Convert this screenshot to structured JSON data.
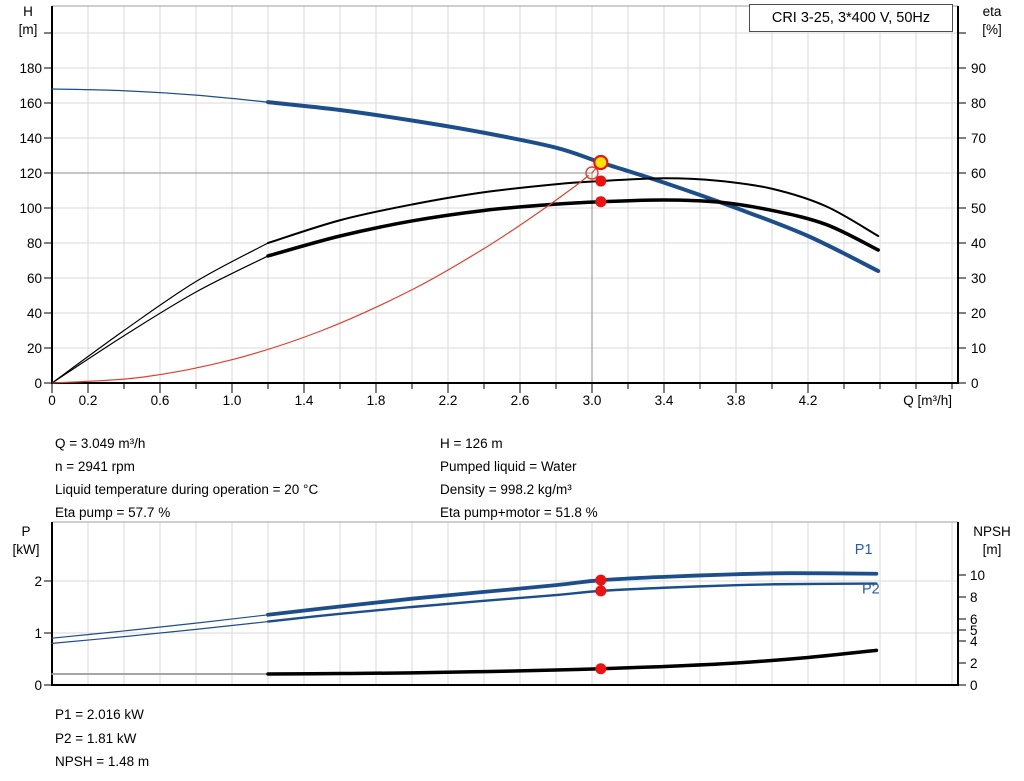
{
  "title_box": "CRI 3-25, 3*400 V, 50Hz",
  "axis_labels": {
    "top_left": [
      "H",
      "[m]"
    ],
    "top_right": [
      "eta",
      "[%]"
    ],
    "x": "Q [m³/h]",
    "bottom_left": [
      "P",
      "[kW]"
    ],
    "bottom_right": [
      "NPSH",
      "[m]"
    ]
  },
  "info": {
    "left": [
      "Q = 3.049 m³/h",
      "n = 2941 rpm",
      "Liquid temperature during operation = 20 °C",
      "Eta pump = 57.7 %"
    ],
    "right": [
      "H = 126 m",
      "Pumped liquid = Water",
      "Density = 998.2 kg/m³",
      "Eta pump+motor = 51.8 %"
    ],
    "bottom": [
      "P1 = 2.016 kW",
      "P2 = 1.81 kW",
      "NPSH = 1.48 m"
    ]
  },
  "colors": {
    "curve_blue": "#1d4e8c",
    "curve_black": "#000000",
    "curve_red": "#e0402f",
    "curve_gray": "#9a9a9a",
    "marker_red": "#ee1111",
    "duty_yellow": "#ffe400",
    "grid": "#d9d9d9",
    "crosshair": "#8c8c8c",
    "frame": "#000000",
    "label_blue": "#2a5c9e"
  },
  "chart_data": [
    {
      "type": "line",
      "id": "head-efficiency-chart",
      "title": "CRI 3-25, 3*400 V, 50Hz",
      "x_axis": {
        "label": "Q [m³/h]",
        "min": 0,
        "max": 5.03,
        "grid_step": 0.2,
        "tick_step": 0.2,
        "labeled_ticks": [
          0,
          0.2,
          0.6,
          1.0,
          1.4,
          1.8,
          2.2,
          2.6,
          3.0,
          3.4,
          3.8,
          4.2
        ],
        "tick_label_strings": [
          "0",
          "0.2",
          "0.6",
          "1.0",
          "1.4",
          "1.8",
          "2.2",
          "2.6",
          "3.0",
          "3.4",
          "3.8",
          "4.2"
        ]
      },
      "y_left": {
        "label": "H [m]",
        "min": 0,
        "grid_step": 20,
        "grid_max": 200,
        "labeled_ticks": [
          0,
          20,
          40,
          60,
          80,
          100,
          120,
          140,
          160,
          180
        ]
      },
      "y_right": {
        "label": "eta [%]",
        "min": 0,
        "tick_step": 10,
        "tick_max": 100,
        "labeled_ticks": [
          0,
          10,
          20,
          30,
          40,
          50,
          60,
          70,
          80,
          90
        ]
      },
      "crosshair": {
        "q": 3.0,
        "axis": "H",
        "value": 120
      },
      "series": [
        {
          "name": "head-curve-thin",
          "axis": "H",
          "color": "blue",
          "w": 1.3,
          "points": [
            [
              0,
              168
            ],
            [
              0.4,
              167
            ],
            [
              0.8,
              164.5
            ],
            [
              1.2,
              160.5
            ]
          ]
        },
        {
          "name": "head-curve",
          "axis": "H",
          "color": "blue",
          "w": 4,
          "points": [
            [
              1.2,
              160.5
            ],
            [
              1.6,
              156
            ],
            [
              2.0,
              150
            ],
            [
              2.4,
              143
            ],
            [
              2.8,
              134.5
            ],
            [
              3.049,
              126
            ],
            [
              3.4,
              114.5
            ],
            [
              3.8,
              100
            ],
            [
              4.2,
              84
            ],
            [
              4.59,
              64
            ]
          ]
        },
        {
          "name": "eta-pump-curve-thin",
          "axis": "eta",
          "color": "black",
          "w": 1.2,
          "points": [
            [
              0,
              0
            ],
            [
              0.4,
              15
            ],
            [
              0.8,
              29
            ],
            [
              1.2,
              40
            ]
          ]
        },
        {
          "name": "eta-pump-curve",
          "axis": "eta",
          "color": "black",
          "w": 2,
          "points": [
            [
              1.2,
              40
            ],
            [
              1.6,
              46.5
            ],
            [
              2.0,
              51
            ],
            [
              2.4,
              54.5
            ],
            [
              2.8,
              56.8
            ],
            [
              3.049,
              57.7
            ],
            [
              3.4,
              58.5
            ],
            [
              3.7,
              57.8
            ],
            [
              4.0,
              55.5
            ],
            [
              4.3,
              50.5
            ],
            [
              4.59,
              42
            ]
          ]
        },
        {
          "name": "eta-pump-motor-curve-thin",
          "axis": "eta",
          "color": "black",
          "w": 1.2,
          "points": [
            [
              0,
              0
            ],
            [
              0.4,
              13.5
            ],
            [
              0.8,
              26
            ],
            [
              1.2,
              36.3
            ]
          ]
        },
        {
          "name": "eta-pump-motor-curve",
          "axis": "eta",
          "color": "black",
          "w": 3.5,
          "points": [
            [
              1.2,
              36.3
            ],
            [
              1.6,
              42
            ],
            [
              2.0,
              46.3
            ],
            [
              2.4,
              49.3
            ],
            [
              2.8,
              51.1
            ],
            [
              3.049,
              51.8
            ],
            [
              3.4,
              52.3
            ],
            [
              3.7,
              51.7
            ],
            [
              4.0,
              49.3
            ],
            [
              4.3,
              45.3
            ],
            [
              4.59,
              38
            ]
          ]
        },
        {
          "name": "system-curve",
          "axis": "H",
          "color": "red",
          "w": 1.2,
          "points": [
            [
              0,
              0
            ],
            [
              0.5,
              3.3
            ],
            [
              1.0,
              13.3
            ],
            [
              1.5,
              30
            ],
            [
              2.0,
              53.3
            ],
            [
              2.4,
              76.8
            ],
            [
              2.7,
              97.2
            ],
            [
              2.9,
              112
            ],
            [
              2.98,
              118.5
            ]
          ]
        },
        {
          "name": "duty-arrow",
          "axis": "H",
          "color": "red",
          "w": 1.2,
          "points": [
            [
              3.0,
              120
            ],
            [
              3.049,
              126
            ]
          ]
        }
      ],
      "markers": [
        {
          "style": "open-circle",
          "q": 3.0,
          "axis": "H",
          "value": 120
        },
        {
          "style": "red-dot",
          "q": 3.049,
          "axis": "eta",
          "value": 57.7
        },
        {
          "style": "red-dot",
          "q": 3.049,
          "axis": "eta",
          "value": 51.8
        },
        {
          "style": "duty-point",
          "q": 3.049,
          "axis": "H",
          "value": 126
        }
      ]
    },
    {
      "type": "line",
      "id": "power-npsh-chart",
      "x_axis": {
        "min": 0,
        "max": 5.03,
        "grid_step": 0.2
      },
      "y_left": {
        "label": "P [kW]",
        "grid_step": 1,
        "grid_max": 2,
        "labeled_ticks": [
          0,
          1,
          2
        ]
      },
      "y_right": {
        "label": "NPSH [m]",
        "labeled_ticks": [
          0,
          2,
          4,
          5,
          6,
          8,
          10
        ]
      },
      "series": [
        {
          "name": "npsh-low-flow-extension",
          "axis": "NPSH",
          "color": "gray",
          "w": 1.8,
          "points": [
            [
              0,
              1.0
            ],
            [
              1.2,
              1.0
            ]
          ]
        },
        {
          "name": "npsh-curve",
          "axis": "NPSH",
          "color": "black",
          "w": 3.5,
          "points": [
            [
              1.2,
              1.0
            ],
            [
              1.6,
              1.04
            ],
            [
              2.0,
              1.1
            ],
            [
              2.4,
              1.22
            ],
            [
              2.8,
              1.36
            ],
            [
              3.049,
              1.48
            ],
            [
              3.4,
              1.68
            ],
            [
              3.8,
              2.0
            ],
            [
              4.2,
              2.5
            ],
            [
              4.58,
              3.15
            ]
          ]
        },
        {
          "name": "p2-curve-thin",
          "axis": "P",
          "color": "blue",
          "w": 1.2,
          "points": [
            [
              0,
              0.8
            ],
            [
              0.4,
              0.93
            ],
            [
              0.8,
              1.07
            ],
            [
              1.2,
              1.22
            ]
          ]
        },
        {
          "name": "p2-curve",
          "axis": "P",
          "color": "blue",
          "w": 2.4,
          "points": [
            [
              1.2,
              1.22
            ],
            [
              1.6,
              1.37
            ],
            [
              2.0,
              1.5
            ],
            [
              2.4,
              1.62
            ],
            [
              2.8,
              1.73
            ],
            [
              3.049,
              1.81
            ],
            [
              3.4,
              1.87
            ],
            [
              3.8,
              1.92
            ],
            [
              4.1,
              1.94
            ],
            [
              4.58,
              1.95
            ]
          ]
        },
        {
          "name": "p1-curve-thin",
          "axis": "P",
          "color": "blue",
          "w": 1.2,
          "points": [
            [
              0,
              0.9
            ],
            [
              0.4,
              1.04
            ],
            [
              0.8,
              1.19
            ],
            [
              1.2,
              1.35
            ]
          ]
        },
        {
          "name": "p1-curve",
          "axis": "P",
          "color": "blue",
          "w": 3.8,
          "points": [
            [
              1.2,
              1.35
            ],
            [
              1.6,
              1.51
            ],
            [
              2.0,
              1.66
            ],
            [
              2.4,
              1.79
            ],
            [
              2.8,
              1.92
            ],
            [
              3.049,
              2.016
            ],
            [
              3.4,
              2.08
            ],
            [
              3.8,
              2.13
            ],
            [
              4.1,
              2.15
            ],
            [
              4.58,
              2.14
            ]
          ]
        }
      ],
      "markers": [
        {
          "style": "red-dot",
          "q": 3.049,
          "axis": "P",
          "value": 2.016
        },
        {
          "style": "red-dot",
          "q": 3.049,
          "axis": "P",
          "value": 1.81
        },
        {
          "style": "red-dot",
          "q": 3.049,
          "axis": "NPSH",
          "value": 1.48
        }
      ],
      "curve_labels": [
        {
          "text": "P1",
          "q": 4.46,
          "axis": "P",
          "value": 2.52
        },
        {
          "text": "P2",
          "q": 4.5,
          "axis": "P",
          "value": 1.76
        }
      ]
    }
  ]
}
